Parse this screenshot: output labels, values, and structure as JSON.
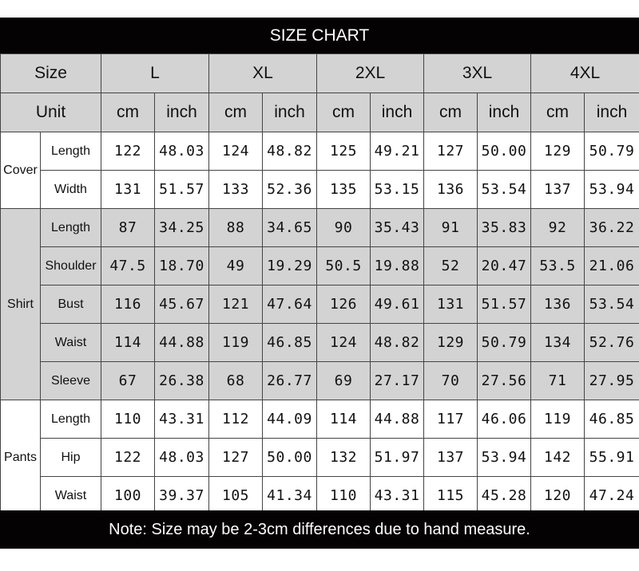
{
  "title": "SIZE CHART",
  "header": {
    "size_label": "Size",
    "unit_label": "Unit",
    "sizes": [
      "L",
      "XL",
      "2XL",
      "3XL",
      "4XL"
    ],
    "units": [
      "cm",
      "inch"
    ]
  },
  "groups": [
    {
      "name": "Cover",
      "rows": [
        {
          "label": "Length",
          "values": [
            "122",
            "48.03",
            "124",
            "48.82",
            "125",
            "49.21",
            "127",
            "50.00",
            "129",
            "50.79"
          ]
        },
        {
          "label": "Width",
          "values": [
            "131",
            "51.57",
            "133",
            "52.36",
            "135",
            "53.15",
            "136",
            "53.54",
            "137",
            "53.94"
          ]
        }
      ]
    },
    {
      "name": "Shirt",
      "rows": [
        {
          "label": "Length",
          "values": [
            "87",
            "34.25",
            "88",
            "34.65",
            "90",
            "35.43",
            "91",
            "35.83",
            "92",
            "36.22"
          ]
        },
        {
          "label": "Shoulder",
          "values": [
            "47.5",
            "18.70",
            "49",
            "19.29",
            "50.5",
            "19.88",
            "52",
            "20.47",
            "53.5",
            "21.06"
          ]
        },
        {
          "label": "Bust",
          "values": [
            "116",
            "45.67",
            "121",
            "47.64",
            "126",
            "49.61",
            "131",
            "51.57",
            "136",
            "53.54"
          ]
        },
        {
          "label": "Waist",
          "values": [
            "114",
            "44.88",
            "119",
            "46.85",
            "124",
            "48.82",
            "129",
            "50.79",
            "134",
            "52.76"
          ]
        },
        {
          "label": "Sleeve",
          "values": [
            "67",
            "26.38",
            "68",
            "26.77",
            "69",
            "27.17",
            "70",
            "27.56",
            "71",
            "27.95"
          ]
        }
      ]
    },
    {
      "name": "Pants",
      "rows": [
        {
          "label": "Length",
          "values": [
            "110",
            "43.31",
            "112",
            "44.09",
            "114",
            "44.88",
            "117",
            "46.06",
            "119",
            "46.85"
          ]
        },
        {
          "label": "Hip",
          "values": [
            "122",
            "48.03",
            "127",
            "50.00",
            "132",
            "51.97",
            "137",
            "53.94",
            "142",
            "55.91"
          ]
        },
        {
          "label": "Waist",
          "values": [
            "100",
            "39.37",
            "105",
            "41.34",
            "110",
            "43.31",
            "115",
            "45.28",
            "120",
            "47.24"
          ]
        }
      ]
    }
  ],
  "note": "Note: Size may be 2-3cm differences due to hand measure.",
  "colors": {
    "bar": "#050203",
    "header_gray": "#d3d3d3",
    "border": "#444444"
  }
}
